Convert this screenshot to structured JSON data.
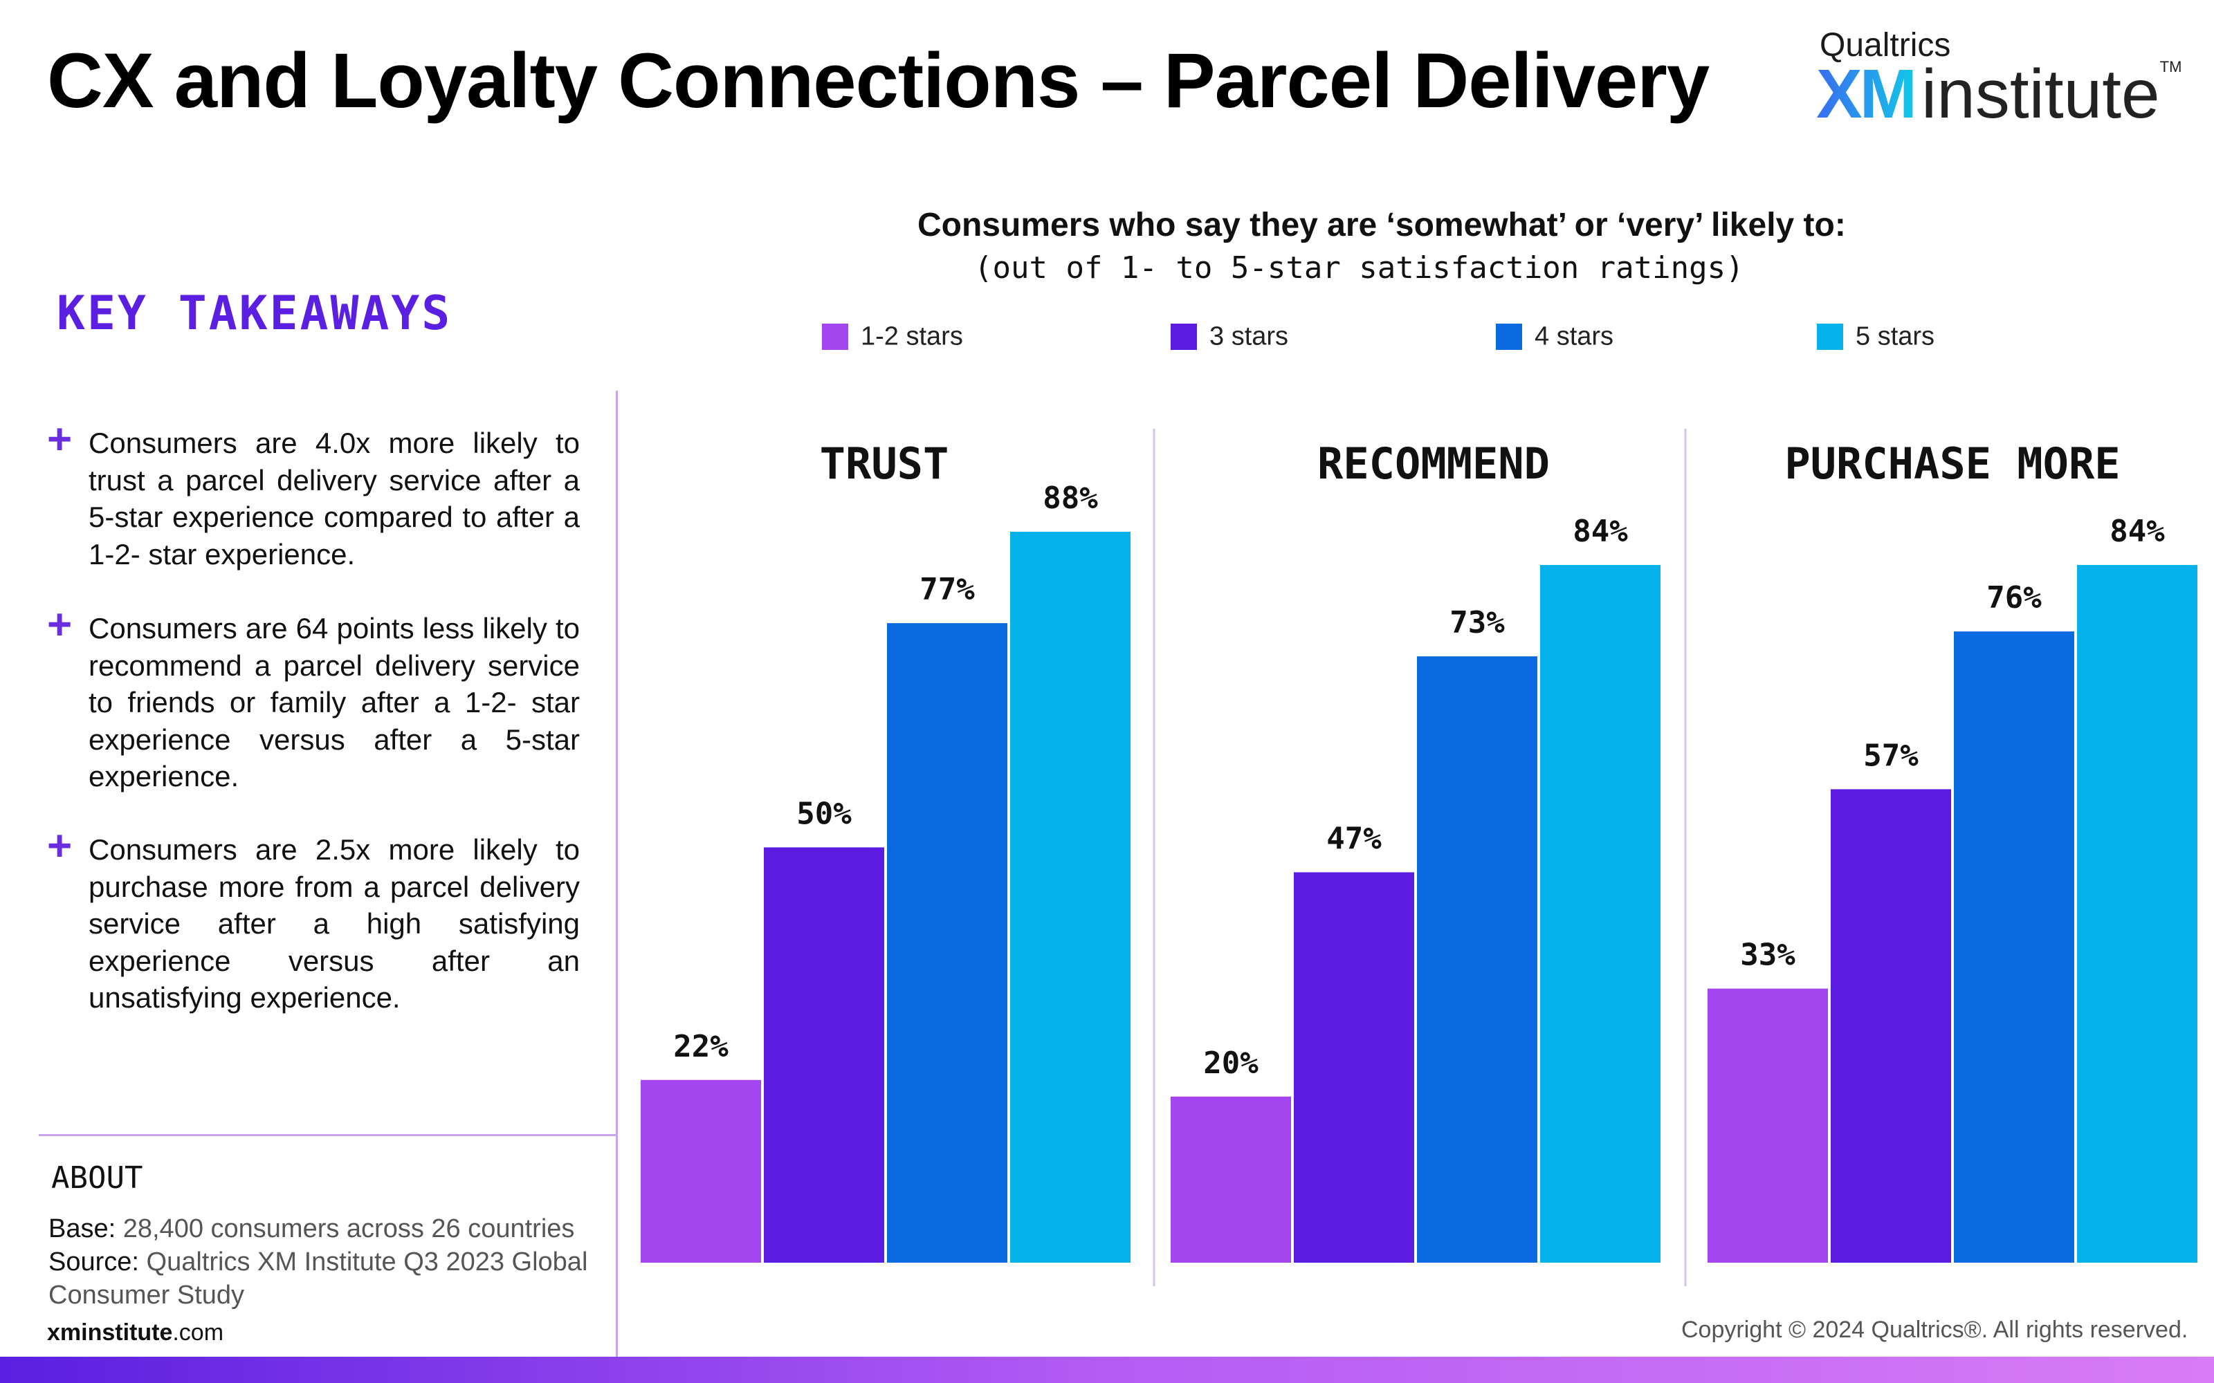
{
  "title": "CX and Loyalty Connections – Parcel Delivery",
  "logo": {
    "top": "Qualtrics",
    "xm": "XM",
    "institute": "institute",
    "tm": "TM"
  },
  "key_takeaways": {
    "heading": "KEY TAKEAWAYS",
    "items": [
      "Consumers are 4.0x more likely to trust a parcel delivery service after a 5-star experience compared to after a 1-2- star experience.",
      "Consumers are 64 points less likely to recommend a parcel delivery service to friends or family after a 1-2- star experience versus after a 5-star experience.",
      "Consumers are 2.5x more likely to purchase more from a parcel delivery service after a high satisfying experience versus after an unsatisfying experience."
    ]
  },
  "about": {
    "heading": "ABOUT",
    "base_label": "Base:",
    "base_value": " 28,400 consumers across 26 countries",
    "source_label": "Source:",
    "source_value_1": " Qualtrics XM Institute Q3 2023 Global",
    "source_value_2": "Consumer Study"
  },
  "footer": {
    "site_bold": "xminstitute",
    "site_rest": ".com",
    "copyright": "Copyright © 2024 Qualtrics®. All rights reserved."
  },
  "chart_data": {
    "type": "bar",
    "title": "Consumers who say they are ‘somewhat’ or ‘very’ likely to:",
    "subtitle": "(out of 1- to 5-star satisfaction ratings)",
    "categories": [
      "TRUST",
      "RECOMMEND",
      "PURCHASE MORE"
    ],
    "series": [
      {
        "name": "1-2 stars",
        "color": "#a346f0",
        "values": [
          22,
          20,
          33
        ]
      },
      {
        "name": "3 stars",
        "color": "#5c1be0",
        "values": [
          50,
          47,
          57
        ]
      },
      {
        "name": "4 stars",
        "color": "#0a6adf",
        "values": [
          77,
          73,
          76
        ]
      },
      {
        "name": "5 stars",
        "color": "#05b3ea",
        "values": [
          88,
          84,
          84
        ]
      }
    ],
    "value_suffix": "%",
    "ylim": [
      0,
      100
    ],
    "grid": false,
    "legend": "top"
  }
}
